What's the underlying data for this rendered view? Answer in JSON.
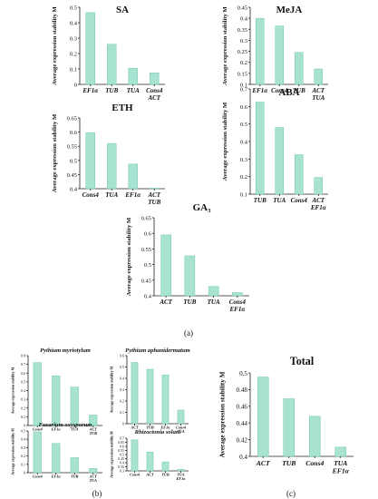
{
  "panel_labels": [
    "(a)",
    "(b)",
    "(c)"
  ],
  "chart_data": [
    {
      "type": "bar",
      "panel": "a",
      "title": "SA",
      "ylabel": "Average expression stability M",
      "categories": [
        [
          "EF1α"
        ],
        [
          "TUB"
        ],
        [
          "TUA"
        ],
        [
          "Cons4",
          "ACT"
        ]
      ],
      "values": [
        0.465,
        0.26,
        0.105,
        0.075
      ],
      "ylim": [
        0,
        0.5
      ],
      "yticks": [
        0,
        0.1,
        0.2,
        0.3,
        0.4,
        0.5
      ]
    },
    {
      "type": "bar",
      "panel": "a",
      "title": "MeJA",
      "ylabel": "Average expression stability M",
      "categories": [
        [
          "EF1α"
        ],
        [
          "Cons4"
        ],
        [
          "TUB"
        ],
        [
          "ACT",
          "TUA"
        ]
      ],
      "values": [
        0.4,
        0.365,
        0.245,
        0.17
      ],
      "ylim": [
        0.1,
        0.45
      ],
      "yticks": [
        0.1,
        0.15,
        0.2,
        0.25,
        0.3,
        0.35,
        0.4,
        0.45
      ]
    },
    {
      "type": "bar",
      "panel": "a",
      "title": "ETH",
      "ylabel": "Average expression stability M",
      "categories": [
        [
          "Cons4"
        ],
        [
          "TUA"
        ],
        [
          "EF1α"
        ],
        [
          "ACT",
          "TUB"
        ]
      ],
      "values": [
        0.598,
        0.56,
        0.487,
        0.402
      ],
      "ylim": [
        0.4,
        0.65
      ],
      "yticks": [
        0.4,
        0.45,
        0.5,
        0.55,
        0.6,
        0.65
      ]
    },
    {
      "type": "bar",
      "panel": "a",
      "title": "ABA",
      "ylabel": "Average expression stability M",
      "categories": [
        [
          "TUB"
        ],
        [
          "TUA"
        ],
        [
          "Cons4"
        ],
        [
          "ACT",
          "EF1α"
        ]
      ],
      "values": [
        0.625,
        0.48,
        0.325,
        0.195
      ],
      "ylim": [
        0.1,
        0.7
      ],
      "yticks": [
        0.1,
        0.2,
        0.3,
        0.4,
        0.5,
        0.6,
        0.7
      ]
    },
    {
      "type": "bar",
      "panel": "a",
      "title": "GA₃",
      "ylabel": "Average expression stability M",
      "categories": [
        [
          "ACT"
        ],
        [
          "TUB"
        ],
        [
          "TUA"
        ],
        [
          "Cons4",
          "EF1α"
        ]
      ],
      "values": [
        0.595,
        0.528,
        0.43,
        0.41
      ],
      "ylim": [
        0.4,
        0.65
      ],
      "yticks": [
        0.4,
        0.45,
        0.5,
        0.55,
        0.6,
        0.65
      ]
    },
    {
      "type": "bar",
      "panel": "b",
      "title": "Pythium myriotylum",
      "ylabel": "Average expression stability M",
      "categories": [
        [
          "Cons4"
        ],
        [
          "EF1α"
        ],
        [
          "TUA"
        ],
        [
          "ACT",
          "TUB"
        ]
      ],
      "values": [
        0.72,
        0.57,
        0.44,
        0.12
      ],
      "ylim": [
        0,
        0.8
      ],
      "yticks": [
        0,
        0.1,
        0.2,
        0.3,
        0.4,
        0.5,
        0.6,
        0.7,
        0.8
      ]
    },
    {
      "type": "bar",
      "panel": "b",
      "title": "Pythium aphanidermatum",
      "ylabel": "Average expression stability M",
      "categories": [
        [
          "ACT"
        ],
        [
          "TUB"
        ],
        [
          "EF1α"
        ],
        [
          "Cons4",
          "TUA"
        ]
      ],
      "values": [
        0.54,
        0.48,
        0.43,
        0.12
      ],
      "ylim": [
        0,
        0.6
      ],
      "yticks": [
        0,
        0.1,
        0.2,
        0.3,
        0.4,
        0.5,
        0.6
      ]
    },
    {
      "type": "bar",
      "panel": "b",
      "title": "Fusarium oxysporum",
      "ylabel": "Average expression stability M",
      "categories": [
        [
          "Cons4"
        ],
        [
          "EF1α"
        ],
        [
          "TUB"
        ],
        [
          "ACT",
          "TUA"
        ]
      ],
      "values": [
        0.49,
        0.35,
        0.18,
        0.05
      ],
      "ylim": [
        0,
        0.5
      ],
      "yticks": [
        0,
        0.1,
        0.2,
        0.3,
        0.4,
        0.5
      ]
    },
    {
      "type": "bar",
      "panel": "b",
      "title": "Rhizoctonia solani",
      "ylabel": "Average expression stability M",
      "categories": [
        [
          "Cons4"
        ],
        [
          "ACT"
        ],
        [
          "TUB"
        ],
        [
          "TUA",
          "EF1α"
        ]
      ],
      "values": [
        0.68,
        0.53,
        0.41,
        0.32
      ],
      "ylim": [
        0.3,
        0.7
      ],
      "yticks": [
        0.3,
        0.35,
        0.4,
        0.45,
        0.5,
        0.55,
        0.6,
        0.65,
        0.7
      ]
    },
    {
      "type": "bar",
      "panel": "c",
      "title": "Total",
      "ylabel": "Average expression stability M",
      "categories": [
        [
          "ACT"
        ],
        [
          "TUB"
        ],
        [
          "Cons4"
        ],
        [
          "TUA",
          "EF1α"
        ]
      ],
      "values": [
        0.495,
        0.469,
        0.448,
        0.411
      ],
      "ylim": [
        0.4,
        0.5
      ],
      "yticks": [
        0.4,
        0.42,
        0.44,
        0.46,
        0.48,
        0.5
      ]
    }
  ]
}
